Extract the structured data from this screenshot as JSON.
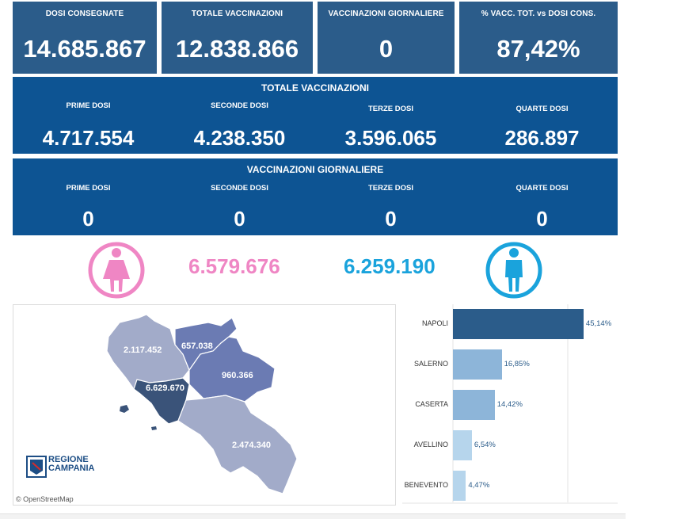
{
  "kpis": [
    {
      "label": "DOSI  CONSEGNATE",
      "value": "14.685.867"
    },
    {
      "label": "TOTALE VACCINAZIONI",
      "value": "12.838.866"
    },
    {
      "label": "VACCINAZIONI GIORNALIERE",
      "value": "0"
    },
    {
      "label": "% VACC. TOT. vs DOSI CONS.",
      "value": "87,42%"
    }
  ],
  "totale": {
    "title": "TOTALE VACCINAZIONI",
    "items": [
      {
        "label": "PRIME DOSI",
        "value": "4.717.554"
      },
      {
        "label": "SECONDE DOSI",
        "value": "4.238.350"
      },
      {
        "label": "TERZE DOSI",
        "value": "3.596.065"
      },
      {
        "label": "QUARTE DOSI",
        "value": "286.897"
      }
    ]
  },
  "giornaliere": {
    "title": "VACCINAZIONI GIORNALIERE",
    "items": [
      {
        "label": "PRIME DOSI",
        "value": "0"
      },
      {
        "label": "SECONDE DOSI",
        "value": "0"
      },
      {
        "label": "TERZE DOSI",
        "value": "0"
      },
      {
        "label": "QUARTE DOSI",
        "value": "0"
      }
    ]
  },
  "gender": {
    "female_value": "6.579.676",
    "male_value": "6.259.190",
    "female_color": "#ef86c4",
    "male_color": "#1aa3dc"
  },
  "map": {
    "regions": [
      {
        "name": "Caserta",
        "value": "2.117.452"
      },
      {
        "name": "Benevento",
        "value": "657.038"
      },
      {
        "name": "Avellino",
        "value": "960.366"
      },
      {
        "name": "Napoli",
        "value": "6.629.670"
      },
      {
        "name": "Salerno",
        "value": "2.474.340"
      }
    ],
    "logo_line1": "REGIONE",
    "logo_line2": "CAMPANIA",
    "attribution": "© OpenStreetMap"
  },
  "chart_data": {
    "type": "bar",
    "orientation": "horizontal",
    "categories": [
      "NAPOLI",
      "SALERNO",
      "CASERTA",
      "AVELLINO",
      "BENEVENTO"
    ],
    "values": [
      45.14,
      16.85,
      14.42,
      6.54,
      4.47
    ],
    "value_labels": [
      "45,14%",
      "16,85%",
      "14,42%",
      "6,54%",
      "4,47%"
    ],
    "colors": [
      "#2b5c8a",
      "#8db5d9",
      "#8db5d9",
      "#b6d5ec",
      "#b6d5ec"
    ],
    "xlim": [
      0,
      52
    ],
    "grid": true
  },
  "colors": {
    "kpi_bg": "#2b5c8a",
    "panel_bg": "#0d5493"
  }
}
